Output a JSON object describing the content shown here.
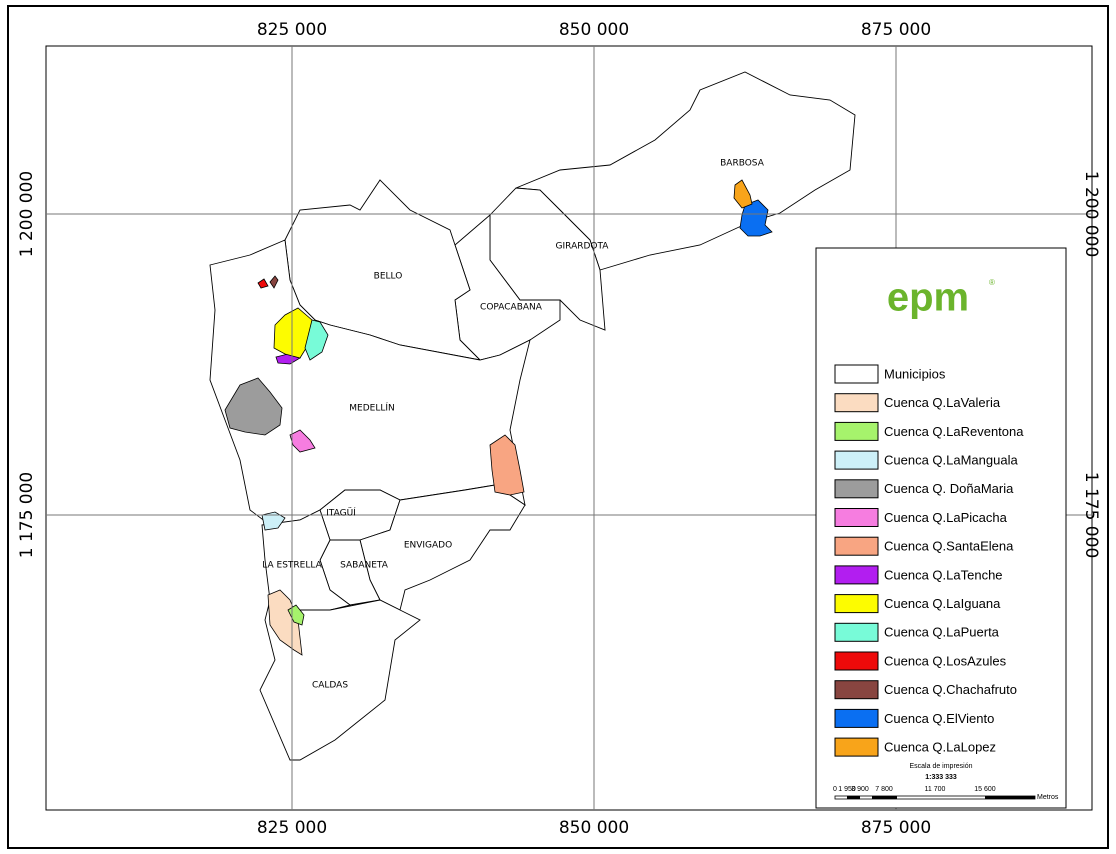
{
  "map": {
    "grid_labels": {
      "x": [
        "825 000",
        "850 000",
        "875 000"
      ],
      "y": [
        "1 200 000",
        "1 175 000"
      ]
    },
    "municipalities": [
      "BARBOSA",
      "GIRARDOTA",
      "COPACABANA",
      "BELLO",
      "MEDELLÍN",
      "ITAGÜÍ",
      "ENVIGADO",
      "LA ESTRELLA",
      "SABANETA",
      "CALDAS"
    ],
    "legend": {
      "logo": "epm",
      "logo_mark": "®",
      "items": [
        {
          "label": "Municipios",
          "color": "#ffffff"
        },
        {
          "label": "Cuenca Q.LaValeria",
          "color": "#fbdcc1"
        },
        {
          "label": "Cuenca Q.LaReventona",
          "color": "#a6f36c"
        },
        {
          "label": "Cuenca Q.LaManguala",
          "color": "#cdf0f8"
        },
        {
          "label": "Cuenca Q. DoñaMaria",
          "color": "#9c9c9c"
        },
        {
          "label": "Cuenca Q.LaPicacha",
          "color": "#f67de0"
        },
        {
          "label": "Cuenca Q.SantaElena",
          "color": "#f8a582"
        },
        {
          "label": "Cuenca Q.LaTenche",
          "color": "#b21ef0"
        },
        {
          "label": "Cuenca Q.LaIguana",
          "color": "#fdfc00"
        },
        {
          "label": "Cuenca Q.LaPuerta",
          "color": "#78fbd8"
        },
        {
          "label": "Cuenca Q.LosAzules",
          "color": "#ee0a0a"
        },
        {
          "label": "Cuenca Q.Chachafruto",
          "color": "#884540"
        },
        {
          "label": "Cuenca Q.ElViento",
          "color": "#0a6ff2"
        },
        {
          "label": "Cuenca Q.LaLopez",
          "color": "#f8a41a"
        }
      ]
    },
    "scale": {
      "title": "Escala de impresión",
      "ratio": "1:333 333",
      "ticks": [
        "0",
        "1 950",
        "3 900",
        "7 800",
        "11 700",
        "15 600"
      ],
      "unit": "Metros"
    }
  }
}
